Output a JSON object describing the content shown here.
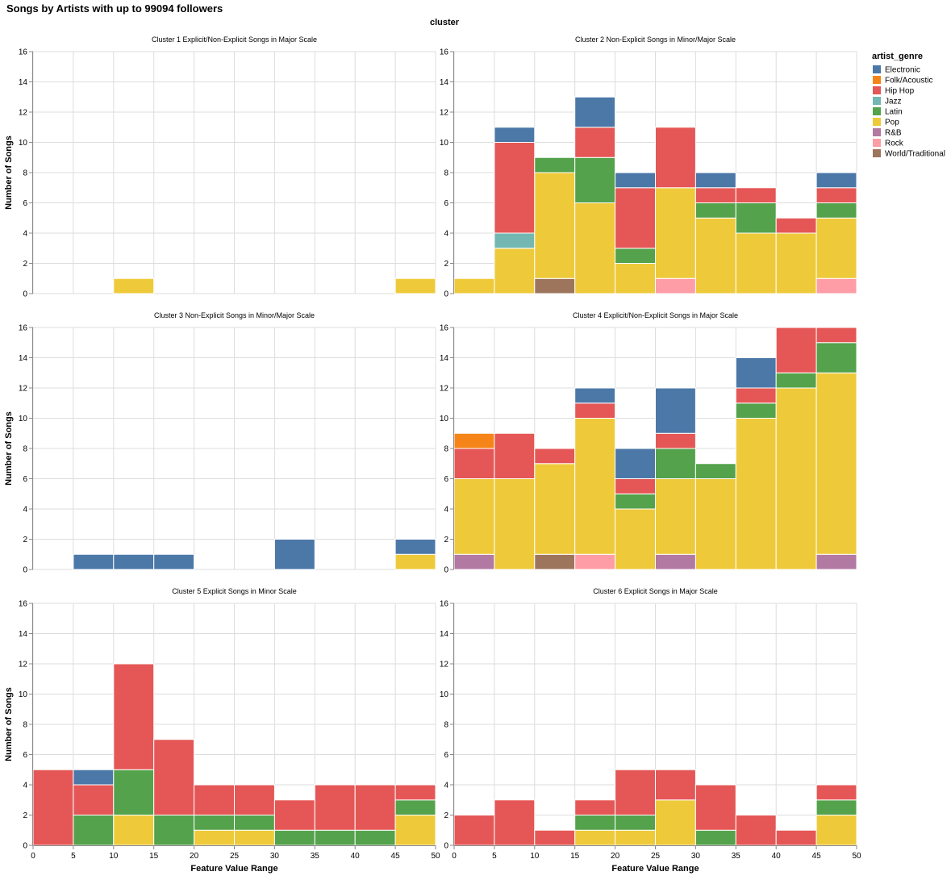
{
  "title": "Songs by Artists with up to 99094 followers",
  "facet_header": "cluster",
  "legend": {
    "title": "artist_genre",
    "items": [
      {
        "name": "Electronic",
        "color": "#4c78a8"
      },
      {
        "name": "Folk/Acoustic",
        "color": "#f58518"
      },
      {
        "name": "Hip Hop",
        "color": "#e45756"
      },
      {
        "name": "Jazz",
        "color": "#72b7b2"
      },
      {
        "name": "Latin",
        "color": "#54a24b"
      },
      {
        "name": "Pop",
        "color": "#eeca3b"
      },
      {
        "name": "R&B",
        "color": "#b279a2"
      },
      {
        "name": "Rock",
        "color": "#ff9da6"
      },
      {
        "name": "World/Traditional",
        "color": "#9d755d"
      }
    ]
  },
  "chart_data": {
    "type": "bar",
    "stacked": true,
    "xlabel": "Feature Value Range",
    "ylabel": "Number of Songs",
    "xlim": [
      0,
      50
    ],
    "ylim": [
      0,
      16
    ],
    "x_ticks": [
      0,
      5,
      10,
      15,
      20,
      25,
      30,
      35,
      40,
      45,
      50
    ],
    "y_ticks": [
      0,
      2,
      4,
      6,
      8,
      10,
      12,
      14,
      16
    ],
    "grid": true,
    "legend_position": "right",
    "bins": [
      "0-5",
      "5-10",
      "10-15",
      "15-20",
      "20-25",
      "25-30",
      "30-35",
      "35-40",
      "40-45",
      "45-50"
    ],
    "stack_order": [
      "World/Traditional",
      "Rock",
      "R&B",
      "Pop",
      "Jazz",
      "Latin",
      "Hip Hop",
      "Folk/Acoustic",
      "Electronic"
    ],
    "panels": [
      {
        "title": "Cluster 1 Explicit/Non-Explicit Songs in Major Scale",
        "series": [
          {
            "name": "Pop",
            "values": [
              0,
              0,
              1,
              0,
              0,
              0,
              0,
              0,
              0,
              1
            ]
          }
        ]
      },
      {
        "title": "Cluster 2 Non-Explicit Songs in Minor/Major Scale",
        "series": [
          {
            "name": "World/Traditional",
            "values": [
              0,
              0,
              1,
              0,
              0,
              0,
              0,
              0,
              0,
              0
            ]
          },
          {
            "name": "Rock",
            "values": [
              0,
              0,
              0,
              0,
              0,
              1,
              0,
              0,
              0,
              1
            ]
          },
          {
            "name": "Pop",
            "values": [
              1,
              3,
              7,
              6,
              2,
              6,
              5,
              4,
              4,
              4
            ]
          },
          {
            "name": "Jazz",
            "values": [
              0,
              1,
              0,
              0,
              0,
              0,
              0,
              0,
              0,
              0
            ]
          },
          {
            "name": "Latin",
            "values": [
              0,
              0,
              1,
              3,
              1,
              0,
              1,
              2,
              0,
              1
            ]
          },
          {
            "name": "Hip Hop",
            "values": [
              0,
              6,
              0,
              2,
              4,
              4,
              1,
              1,
              1,
              1
            ]
          },
          {
            "name": "Electronic",
            "values": [
              0,
              1,
              0,
              2,
              1,
              0,
              1,
              0,
              0,
              1
            ]
          }
        ]
      },
      {
        "title": "Cluster 3 Non-Explicit Songs in Minor/Major Scale",
        "series": [
          {
            "name": "Pop",
            "values": [
              0,
              0,
              0,
              0,
              0,
              0,
              0,
              0,
              0,
              1
            ]
          },
          {
            "name": "Electronic",
            "values": [
              0,
              1,
              1,
              1,
              0,
              0,
              2,
              0,
              0,
              1
            ]
          }
        ]
      },
      {
        "title": "Cluster 4 Explicit/Non-Explicit Songs in Major Scale",
        "series": [
          {
            "name": "World/Traditional",
            "values": [
              0,
              0,
              1,
              0,
              0,
              0,
              0,
              0,
              0,
              0
            ]
          },
          {
            "name": "Rock",
            "values": [
              0,
              0,
              0,
              1,
              0,
              0,
              0,
              0,
              0,
              0
            ]
          },
          {
            "name": "R&B",
            "values": [
              1,
              0,
              0,
              0,
              0,
              1,
              0,
              0,
              0,
              1
            ]
          },
          {
            "name": "Pop",
            "values": [
              5,
              6,
              6,
              9,
              4,
              5,
              6,
              10,
              12,
              12
            ]
          },
          {
            "name": "Latin",
            "values": [
              0,
              0,
              0,
              0,
              1,
              2,
              1,
              1,
              1,
              2
            ]
          },
          {
            "name": "Hip Hop",
            "values": [
              2,
              3,
              1,
              1,
              1,
              1,
              0,
              1,
              3,
              1
            ]
          },
          {
            "name": "Folk/Acoustic",
            "values": [
              1,
              0,
              0,
              0,
              0,
              0,
              0,
              0,
              0,
              0
            ]
          },
          {
            "name": "Electronic",
            "values": [
              0,
              0,
              0,
              1,
              2,
              3,
              0,
              2,
              0,
              0
            ]
          }
        ]
      },
      {
        "title": "Cluster 5 Explicit Songs in Minor Scale",
        "series": [
          {
            "name": "Pop",
            "values": [
              0,
              0,
              2,
              0,
              1,
              1,
              0,
              0,
              0,
              2
            ]
          },
          {
            "name": "Latin",
            "values": [
              0,
              2,
              3,
              2,
              1,
              1,
              1,
              1,
              1,
              1
            ]
          },
          {
            "name": "Hip Hop",
            "values": [
              5,
              2,
              7,
              5,
              2,
              2,
              2,
              3,
              3,
              1
            ]
          },
          {
            "name": "Electronic",
            "values": [
              0,
              1,
              0,
              0,
              0,
              0,
              0,
              0,
              0,
              0
            ]
          }
        ]
      },
      {
        "title": "Cluster 6 Explicit Songs in Major Scale",
        "series": [
          {
            "name": "Pop",
            "values": [
              0,
              0,
              0,
              1,
              1,
              3,
              0,
              0,
              0,
              2
            ]
          },
          {
            "name": "Latin",
            "values": [
              0,
              0,
              0,
              1,
              1,
              0,
              1,
              0,
              0,
              1
            ]
          },
          {
            "name": "Hip Hop",
            "values": [
              2,
              3,
              1,
              1,
              3,
              2,
              3,
              2,
              1,
              1
            ]
          }
        ]
      }
    ]
  }
}
